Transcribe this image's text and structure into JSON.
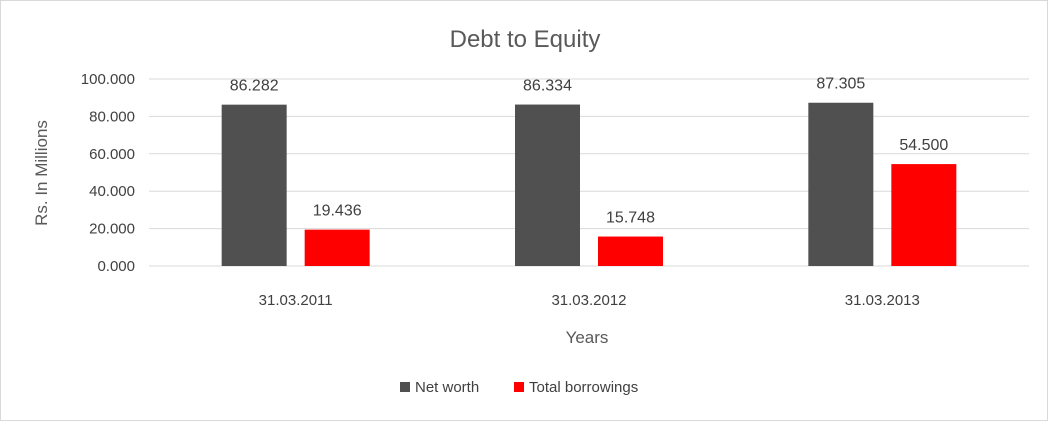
{
  "chart_data": {
    "type": "bar",
    "title": "Debt to Equity",
    "xlabel": "Years",
    "ylabel": "Rs. In Millions",
    "categories": [
      "31.03.2011",
      "31.03.2012",
      "31.03.2013"
    ],
    "series": [
      {
        "name": "Net worth",
        "color": "#505050",
        "values": [
          86.282,
          86.334,
          87.305
        ],
        "labels": [
          "86.282",
          "86.334",
          "87.305"
        ]
      },
      {
        "name": "Total borrowings",
        "color": "#ff0000",
        "values": [
          19.436,
          15.748,
          54.5
        ],
        "labels": [
          "19.436",
          "15.748",
          "54.500"
        ]
      }
    ],
    "ylim": [
      0,
      100
    ],
    "yticks": [
      0,
      20,
      40,
      60,
      80,
      100
    ],
    "ytick_labels": [
      "0.000",
      "20.000",
      "40.000",
      "60.000",
      "80.000",
      "100.000"
    ],
    "grid": true,
    "legend": "bottom"
  }
}
